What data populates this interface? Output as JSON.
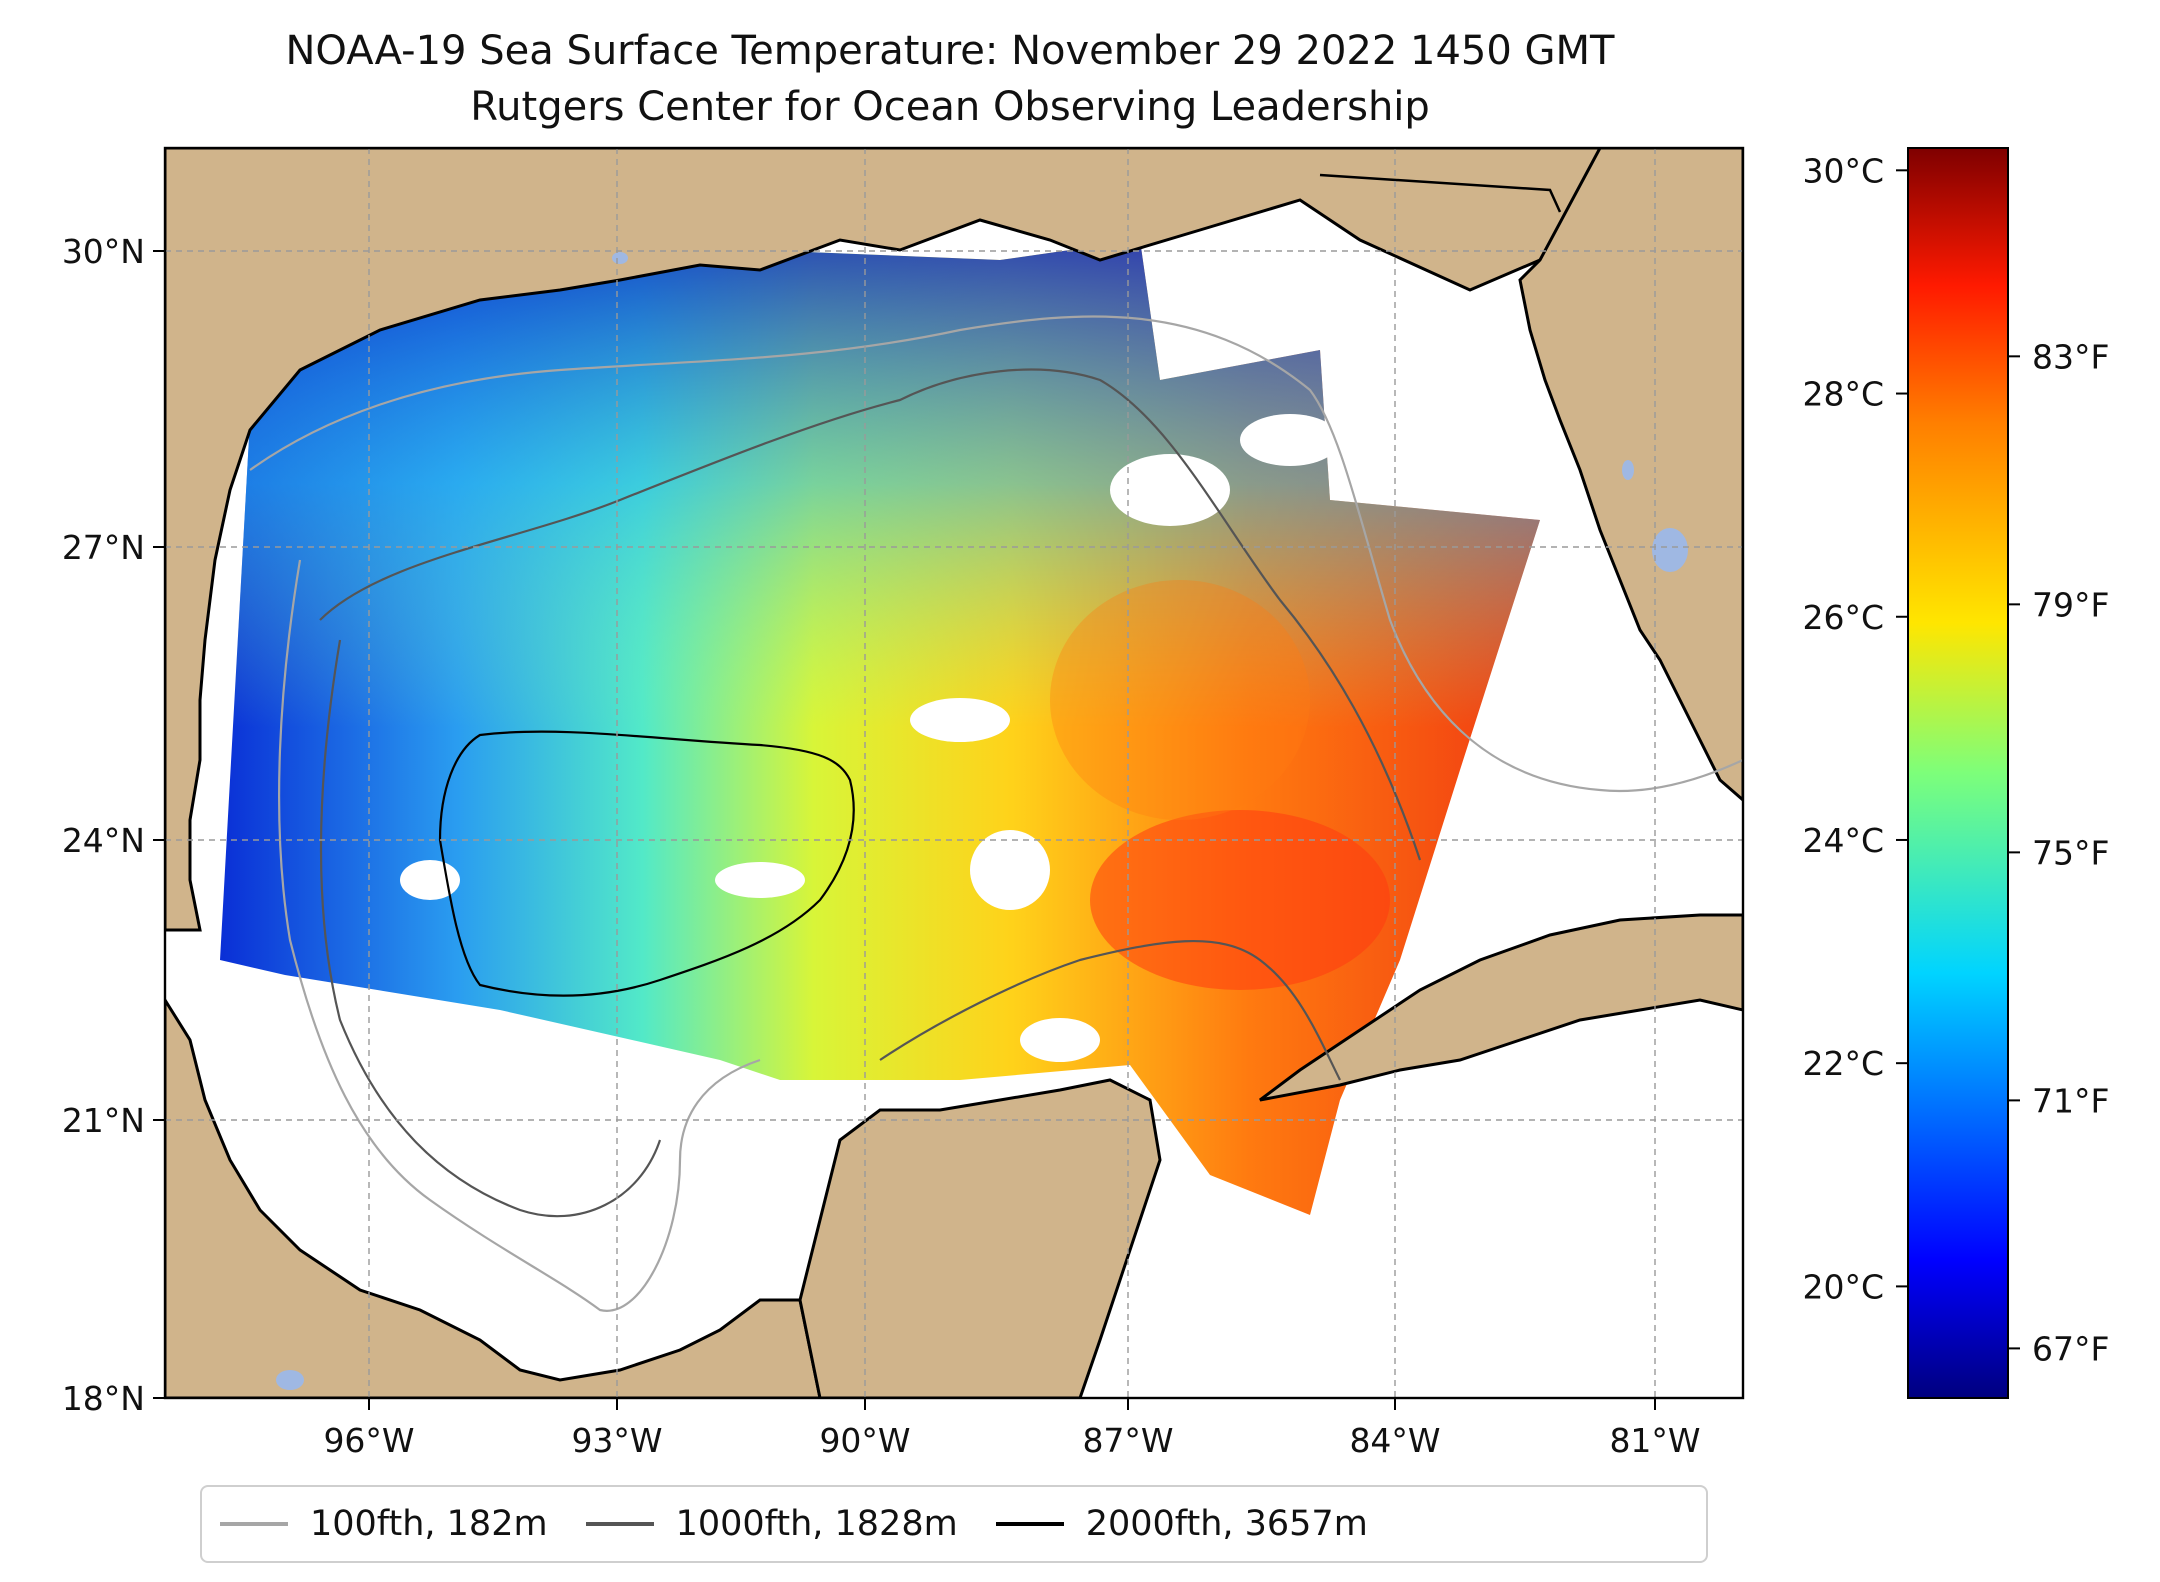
{
  "title": {
    "line1": "NOAA-19 Sea Surface Temperature: November 29 2022 1450 GMT",
    "line2": "Rutgers Center for Ocean Observing Leadership"
  },
  "map": {
    "region": "Gulf of Mexico",
    "lon_range": [
      -98,
      -80.3
    ],
    "lat_range": [
      18,
      31
    ],
    "lon_ticks": [
      -96,
      -93,
      -90,
      -87,
      -84,
      -81
    ],
    "lon_tick_labels": [
      "96°W",
      "93°W",
      "90°W",
      "87°W",
      "84°W",
      "81°W"
    ],
    "lat_ticks": [
      18,
      21,
      24,
      27,
      30
    ],
    "lat_tick_labels": [
      "18°N",
      "21°N",
      "24°N",
      "27°N",
      "30°N"
    ],
    "colors": {
      "land": "#d0b48b",
      "lakes": "#9fb8e3",
      "coast": "#000000",
      "grid": "#9a9a9a"
    }
  },
  "colorbar": {
    "colormap": "jet",
    "celsius_range": [
      19,
      30.2
    ],
    "celsius_ticks": [
      "20°C",
      "22°C",
      "24°C",
      "26°C",
      "28°C",
      "30°C"
    ],
    "celsius_values": [
      20,
      22,
      24,
      26,
      28,
      30
    ],
    "fahrenheit_ticks": [
      "67°F",
      "71°F",
      "75°F",
      "79°F",
      "83°F"
    ],
    "fahrenheit_values": [
      67,
      71,
      75,
      79,
      83
    ]
  },
  "legend": {
    "items": [
      {
        "label": "100fth, 182m",
        "color": "#a6a6a6"
      },
      {
        "label": "1000fth, 1828m",
        "color": "#555555"
      },
      {
        "label": "2000fth, 3657m",
        "color": "#000000"
      }
    ]
  }
}
